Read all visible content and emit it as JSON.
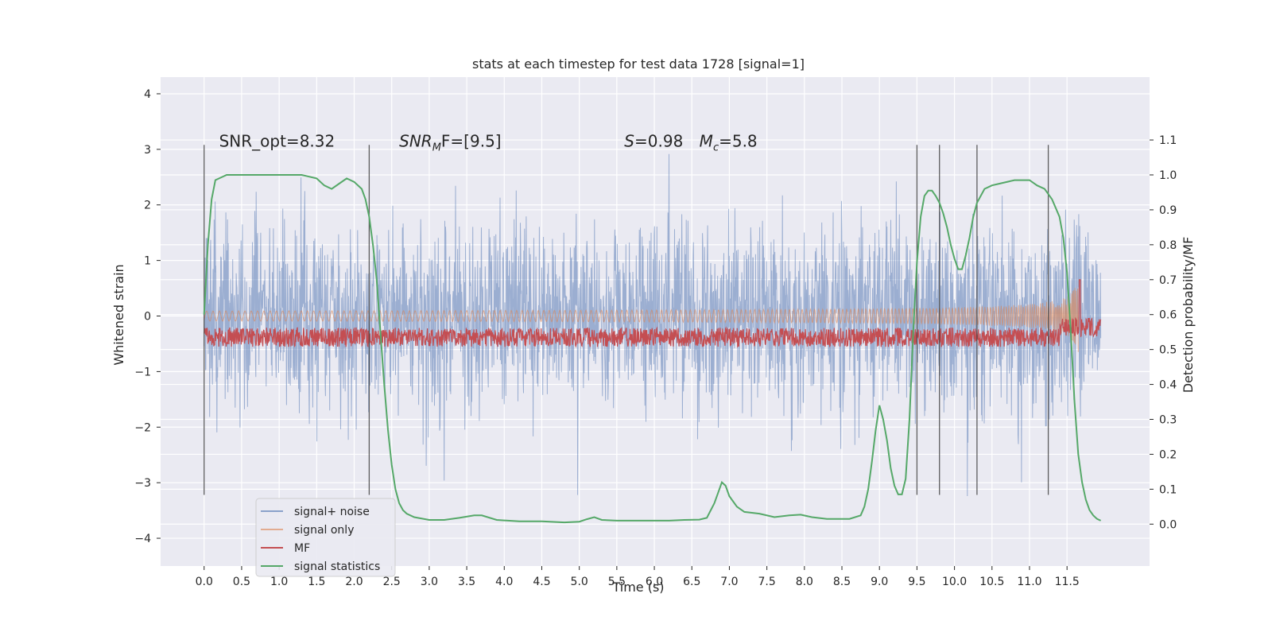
{
  "chart_data": {
    "type": "line",
    "title": "stats at each timestep for test data 1728 [signal=1]",
    "xlabel": "Time (s)",
    "ylabel": "Whitened strain",
    "y2label": "Detection probability/MF",
    "xlim": [
      -0.58,
      12.6
    ],
    "ylim": [
      -4.5,
      4.3
    ],
    "y2lim": [
      -0.12,
      1.28
    ],
    "xticks": [
      "0.0",
      "0.5",
      "1.0",
      "1.5",
      "2.0",
      "2.5",
      "3.0",
      "3.5",
      "4.0",
      "4.5",
      "5.0",
      "5.5",
      "6.0",
      "6.5",
      "7.0",
      "7.5",
      "8.0",
      "8.5",
      "9.0",
      "9.5",
      "10.0",
      "10.5",
      "11.0",
      "11.5"
    ],
    "yticks": [
      "4",
      "3",
      "2",
      "1",
      "0",
      "−1",
      "−2",
      "−3",
      "−4"
    ],
    "y2ticks": [
      "1.1",
      "1.0",
      "0.9",
      "0.8",
      "0.7",
      "0.6",
      "0.5",
      "0.4",
      "0.3",
      "0.2",
      "0.1",
      "0.0"
    ],
    "grid": true,
    "legend_position": "lower-left",
    "colors": {
      "background": "#eaeaf2",
      "grid": "#ffffff",
      "signal_noise": "#4c72b0",
      "signal_only": "#dd8452",
      "mf": "#c44e52",
      "signal_statistics": "#55a868",
      "vline": "#444444"
    },
    "series": [
      {
        "name": "signal+ noise",
        "description_range": [
          -2.5,
          2.5
        ]
      },
      {
        "name": "signal only"
      },
      {
        "name": "MF"
      },
      {
        "name": "signal statistics",
        "axis": "right",
        "x": [
          0.0,
          0.05,
          0.1,
          0.15,
          0.2,
          0.3,
          0.5,
          0.8,
          1.0,
          1.3,
          1.5,
          1.6,
          1.7,
          1.8,
          1.9,
          2.0,
          2.1,
          2.15,
          2.2,
          2.25,
          2.3,
          2.35,
          2.4,
          2.45,
          2.5,
          2.55,
          2.6,
          2.65,
          2.7,
          2.8,
          3.0,
          3.2,
          3.4,
          3.6,
          3.7,
          3.9,
          4.2,
          4.5,
          4.8,
          5.0,
          5.1,
          5.2,
          5.3,
          5.5,
          5.8,
          6.0,
          6.2,
          6.4,
          6.6,
          6.7,
          6.8,
          6.85,
          6.9,
          6.95,
          7.0,
          7.1,
          7.2,
          7.4,
          7.6,
          7.8,
          7.95,
          8.1,
          8.3,
          8.6,
          8.75,
          8.8,
          8.85,
          8.9,
          8.95,
          9.0,
          9.05,
          9.1,
          9.15,
          9.2,
          9.25,
          9.3,
          9.35,
          9.4,
          9.45,
          9.5,
          9.55,
          9.6,
          9.65,
          9.7,
          9.75,
          9.8,
          9.85,
          9.9,
          9.95,
          10.0,
          10.05,
          10.1,
          10.15,
          10.2,
          10.25,
          10.3,
          10.4,
          10.5,
          10.6,
          10.8,
          11.0,
          11.1,
          11.2,
          11.3,
          11.4,
          11.45,
          11.5,
          11.55,
          11.6,
          11.65,
          11.7,
          11.75,
          11.8,
          11.85,
          11.9,
          11.95
        ],
        "values": [
          0.6,
          0.8,
          0.93,
          0.985,
          0.99,
          1.0,
          1.0,
          1.0,
          1.0,
          1.0,
          0.99,
          0.97,
          0.96,
          0.975,
          0.99,
          0.98,
          0.96,
          0.93,
          0.88,
          0.8,
          0.7,
          0.55,
          0.4,
          0.27,
          0.17,
          0.1,
          0.06,
          0.04,
          0.03,
          0.02,
          0.012,
          0.012,
          0.018,
          0.025,
          0.025,
          0.012,
          0.008,
          0.008,
          0.005,
          0.007,
          0.014,
          0.02,
          0.012,
          0.01,
          0.01,
          0.01,
          0.01,
          0.012,
          0.013,
          0.018,
          0.06,
          0.09,
          0.12,
          0.11,
          0.08,
          0.05,
          0.035,
          0.03,
          0.02,
          0.025,
          0.027,
          0.02,
          0.015,
          0.015,
          0.025,
          0.05,
          0.1,
          0.18,
          0.27,
          0.34,
          0.3,
          0.24,
          0.16,
          0.11,
          0.085,
          0.085,
          0.13,
          0.3,
          0.55,
          0.75,
          0.88,
          0.94,
          0.955,
          0.955,
          0.94,
          0.92,
          0.89,
          0.85,
          0.8,
          0.76,
          0.73,
          0.73,
          0.77,
          0.82,
          0.88,
          0.92,
          0.96,
          0.97,
          0.975,
          0.985,
          0.985,
          0.97,
          0.96,
          0.93,
          0.88,
          0.82,
          0.72,
          0.55,
          0.35,
          0.2,
          0.12,
          0.07,
          0.04,
          0.025,
          0.015,
          0.01
        ]
      }
    ],
    "vlines": [
      0.0,
      2.2,
      9.5,
      9.8,
      10.3,
      11.25
    ],
    "mf_spike": {
      "x": 11.67,
      "value": 1.0
    },
    "annotations": [
      {
        "text": "SNR_opt=8.32",
        "x": 0.2,
        "y": 3.05
      },
      {
        "text": "SNR",
        "sub": "M",
        "rest": "F=[9.5]",
        "x": 2.6,
        "y": 3.05
      },
      {
        "text": "S",
        "rest": "=0.98",
        "x": 5.6,
        "y": 3.05
      },
      {
        "text": "M",
        "sub": "c",
        "rest": "=5.8",
        "x": 6.6,
        "y": 3.05
      }
    ],
    "legend": [
      "signal+ noise",
      "signal only",
      "MF",
      "signal statistics"
    ]
  }
}
